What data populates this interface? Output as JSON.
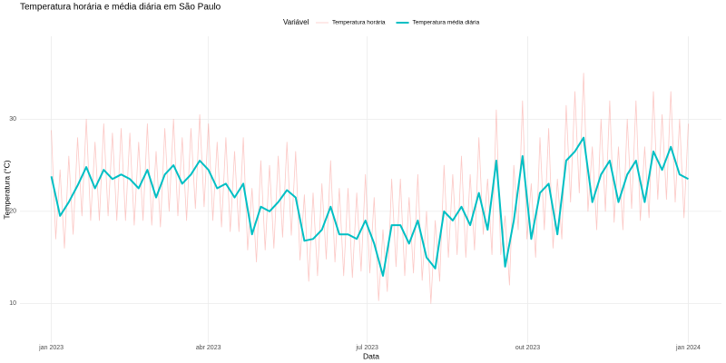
{
  "chart_data": {
    "type": "line",
    "title": "Temperatura horária e média diária em São Paulo",
    "x_label": "Data",
    "y_label": "Temperatura (°C)",
    "legend_title": "Variável",
    "legend_position": "top",
    "grid": true,
    "xlim": [
      -18,
      384
    ],
    "xticks": [
      {
        "value": 0,
        "label": "jan 2023"
      },
      {
        "value": 90,
        "label": "abr 2023"
      },
      {
        "value": 181,
        "label": "jul 2023"
      },
      {
        "value": 273,
        "label": "out 2023"
      },
      {
        "value": 365,
        "label": "jan 2024"
      }
    ],
    "ylim": [
      5.7,
      39
    ],
    "yticks": [
      10,
      20,
      30
    ],
    "series": [
      {
        "name": "Temperatura horária",
        "color": "#f8766d",
        "opacity": 0.4,
        "width": 0.8,
        "x": [
          0,
          2.5,
          5,
          7.5,
          10,
          12.5,
          15,
          17.5,
          20,
          22.5,
          25,
          27.5,
          30,
          32.5,
          35,
          37.5,
          40,
          42.5,
          45,
          47.5,
          50,
          52.5,
          55,
          57.5,
          60,
          62.5,
          65,
          67.5,
          70,
          72.5,
          75,
          77.5,
          80,
          82.5,
          85,
          87.5,
          90,
          92.5,
          95,
          97.5,
          100,
          102.5,
          105,
          107.5,
          110,
          112.5,
          115,
          117.5,
          120,
          122.5,
          125,
          127.5,
          130,
          132.5,
          135,
          137.5,
          140,
          142.5,
          145,
          147.5,
          150,
          152.5,
          155,
          157.5,
          160,
          162.5,
          165,
          167.5,
          170,
          172.5,
          175,
          177.5,
          180,
          182.5,
          185,
          187.5,
          190,
          192.5,
          195,
          197.5,
          200,
          202.5,
          205,
          207.5,
          210,
          212.5,
          215,
          217.5,
          220,
          222.5,
          225,
          227.5,
          230,
          232.5,
          235,
          237.5,
          240,
          242.5,
          245,
          247.5,
          250,
          252.5,
          255,
          257.5,
          260,
          262.5,
          265,
          267.5,
          270,
          272.5,
          275,
          277.5,
          280,
          282.5,
          285,
          287.5,
          290,
          292.5,
          295,
          297.5,
          300,
          302.5,
          305,
          307.5,
          310,
          312.5,
          315,
          317.5,
          320,
          322.5,
          325,
          327.5,
          330,
          332.5,
          335,
          337.5,
          340,
          342.5,
          345,
          347.5,
          350,
          352.5,
          355,
          357.5,
          360,
          362.5,
          365
        ],
        "values": [
          28.8,
          17,
          24.5,
          16,
          26,
          17.5,
          28,
          19.5,
          30,
          19,
          27.5,
          19,
          29.5,
          19.5,
          28.5,
          19,
          29,
          19,
          28.5,
          18.5,
          27.5,
          19,
          29.5,
          18.5,
          26.5,
          18.3,
          29,
          20,
          30,
          19.5,
          28,
          19,
          29,
          20.3,
          30.5,
          20.5,
          29.5,
          19,
          27.5,
          18.3,
          28,
          17.8,
          26.5,
          17.8,
          28,
          15.8,
          22.5,
          14.5,
          25.5,
          15.8,
          25,
          16,
          26,
          17.2,
          27.5,
          17.4,
          26.5,
          14.7,
          21.8,
          12.4,
          22,
          13,
          23,
          14.8,
          25.5,
          14.5,
          22.5,
          13,
          22.5,
          12.8,
          22,
          13.5,
          24,
          13.3,
          21.5,
          10.3,
          18,
          11.3,
          23.5,
          14,
          23.5,
          13,
          21.5,
          13.3,
          24,
          12.5,
          20,
          10,
          19,
          12.4,
          25,
          15,
          24,
          15.3,
          26,
          15,
          24,
          15.8,
          28,
          17.5,
          23.5,
          15.3,
          31,
          15.3,
          19.5,
          12,
          25,
          18,
          32,
          17,
          23,
          15,
          28,
          18,
          29,
          16,
          23.5,
          17,
          31.5,
          21,
          33,
          22,
          35,
          20,
          27,
          18,
          30,
          20,
          32,
          18.8,
          27,
          18,
          30,
          20.3,
          32,
          19,
          27,
          19.3,
          33,
          21.3,
          30.5,
          21.3,
          33,
          21,
          30,
          19.3,
          29.5
        ]
      },
      {
        "name": "Temperatura média diária",
        "color": "#00bfc4",
        "opacity": 1,
        "width": 2,
        "x": [
          0,
          5,
          10,
          15,
          20,
          25,
          30,
          35,
          40,
          45,
          50,
          55,
          60,
          65,
          70,
          75,
          80,
          85,
          90,
          95,
          100,
          105,
          110,
          115,
          120,
          125,
          130,
          135,
          140,
          145,
          150,
          155,
          160,
          165,
          170,
          175,
          180,
          185,
          190,
          195,
          200,
          205,
          210,
          215,
          220,
          225,
          230,
          235,
          240,
          245,
          250,
          255,
          260,
          265,
          270,
          275,
          280,
          285,
          290,
          295,
          300,
          305,
          310,
          315,
          320,
          325,
          330,
          335,
          340,
          345,
          350,
          355,
          360,
          365
        ],
        "values": [
          23.8,
          19.5,
          21,
          22.8,
          24.8,
          22.5,
          24.5,
          23.5,
          24,
          23.5,
          22.5,
          24.5,
          21.5,
          24,
          25,
          23,
          24,
          25.5,
          24.5,
          22.5,
          23,
          21.5,
          23,
          17.5,
          20.5,
          20,
          21,
          22.3,
          21.5,
          16.8,
          17,
          18,
          20.5,
          17.5,
          17.5,
          17,
          19,
          16.5,
          13,
          18.5,
          18.5,
          16.5,
          19,
          15,
          13.8,
          20,
          19,
          20.5,
          18.5,
          22,
          18,
          25.5,
          14,
          19,
          26,
          17,
          22,
          23,
          17.5,
          25.5,
          26.5,
          28,
          21,
          24,
          25.5,
          21,
          24,
          25.5,
          21,
          26.5,
          24.5,
          27,
          24,
          23.5
        ]
      }
    ]
  }
}
